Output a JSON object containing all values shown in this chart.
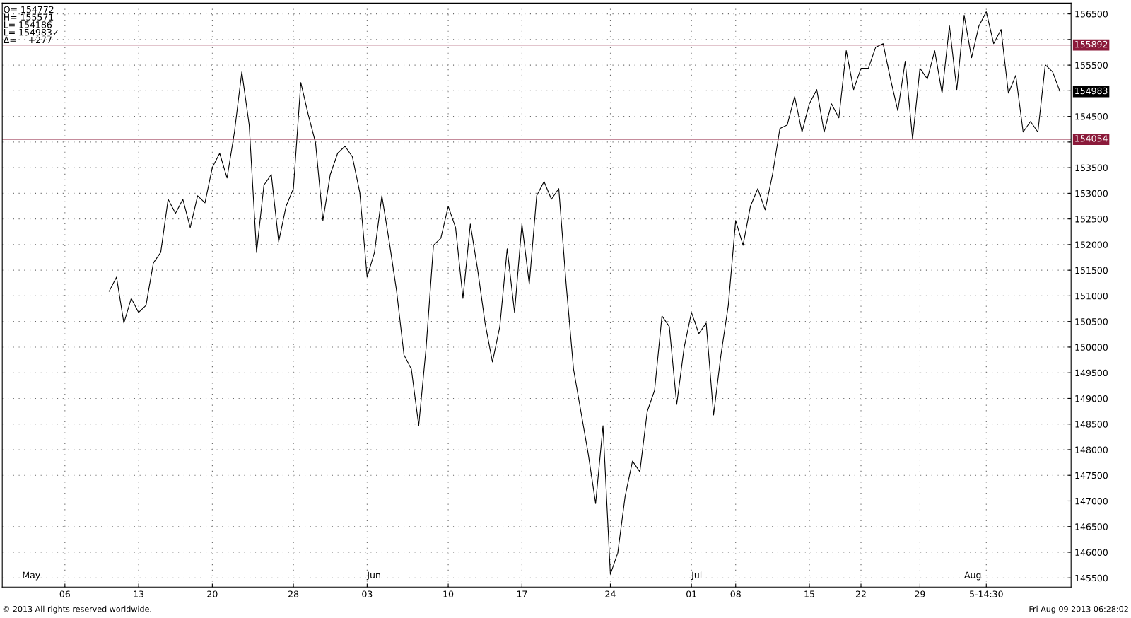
{
  "chart_data": {
    "type": "line",
    "categories": [
      null,
      null,
      null,
      null,
      null,
      null,
      null,
      null,
      "06",
      null,
      null,
      null,
      null,
      null,
      null,
      null,
      null,
      null,
      "13",
      null,
      null,
      null,
      null,
      null,
      null,
      null,
      null,
      null,
      "20",
      null,
      null,
      null,
      null,
      null,
      null,
      null,
      null,
      null,
      null,
      "28",
      null,
      null,
      null,
      null,
      null,
      null,
      null,
      null,
      null,
      "03",
      null,
      null,
      null,
      null,
      null,
      null,
      null,
      null,
      null,
      null,
      "10",
      null,
      null,
      null,
      null,
      null,
      null,
      null,
      null,
      null,
      "17",
      null,
      null,
      null,
      null,
      null,
      null,
      null,
      null,
      null,
      null,
      null,
      "24",
      null,
      null,
      null,
      null,
      null,
      null,
      null,
      null,
      null,
      null,
      "01",
      null,
      null,
      null,
      null,
      null,
      "08",
      null,
      null,
      null,
      null,
      null,
      null,
      null,
      null,
      null,
      "15",
      null,
      null,
      null,
      null,
      null,
      null,
      "22",
      null,
      null,
      null,
      null,
      null,
      null,
      null,
      "29",
      null,
      null,
      null,
      null,
      null,
      null,
      null,
      null,
      "5-14:30",
      null,
      null,
      null,
      null,
      null,
      null,
      null,
      null,
      null,
      null,
      null
    ],
    "series": [
      {
        "color": "#000000",
        "values": [
          null,
          null,
          null,
          null,
          null,
          null,
          null,
          null,
          null,
          null,
          null,
          null,
          null,
          null,
          151090,
          151366,
          150469,
          150952,
          150676,
          150814,
          151642,
          151849,
          152884,
          152608,
          152884,
          152332,
          152953,
          152815,
          153505,
          153781,
          153298,
          154195,
          155368,
          154333,
          151849,
          153160,
          153367,
          152056,
          152746,
          153091,
          155161,
          154540,
          153988,
          152470,
          153367,
          153781,
          153919,
          153712,
          153022,
          151366,
          151849,
          152953,
          152056,
          151090,
          149848,
          149572,
          148468,
          149986,
          151987,
          152125,
          152746,
          152332,
          150952,
          152401,
          151504,
          150469,
          149710,
          150400,
          151918,
          150676,
          152401,
          151228,
          152953,
          153229,
          152884,
          153091,
          151228,
          149572,
          148744,
          147916,
          146950,
          148468,
          145570,
          145984,
          147088,
          147778,
          147571,
          148744,
          149158,
          150607,
          150400,
          148882,
          149986,
          150676,
          150262,
          150469,
          148675,
          149848,
          150814,
          152470,
          151987,
          152746,
          153091,
          152677,
          153367,
          154264,
          154333,
          154885,
          154195,
          154747,
          155023,
          154195,
          154747,
          154471,
          155782,
          155023,
          155437,
          155437,
          155851,
          155920,
          155230,
          154609,
          155575,
          154057,
          155437,
          155230,
          155782,
          154954,
          156265,
          155023,
          156472,
          155644,
          156265,
          156541,
          155920,
          156196,
          154954,
          155299,
          154195,
          154402,
          154195,
          155506,
          155368,
          154983,
          null
        ]
      }
    ],
    "ylim": [
      145320,
      156710
    ],
    "yticks": [
      145500,
      146000,
      146500,
      147000,
      147500,
      148000,
      148500,
      149000,
      149500,
      150000,
      150500,
      151000,
      151500,
      152000,
      152500,
      153000,
      153500,
      {
        "value": 154000,
        "label": null
      },
      154500,
      {
        "value": 155000,
        "label": null
      },
      155500,
      {
        "value": 156000,
        "label": null
      },
      156500
    ],
    "ref_lines": [
      {
        "axis": "y",
        "value": 155892,
        "label": "155892",
        "color": "#8b1a3a"
      },
      {
        "axis": "y",
        "value": 154054,
        "label": "154054",
        "color": "#8b1a3a"
      }
    ],
    "grid": true,
    "marker": "none",
    "line_style": "solid",
    "annotations": [
      "O= 154772",
      "H= 155571",
      "L= 154186",
      "L= 154983✓",
      "Δ=    +277",
      "154983",
      "May",
      "Jun",
      "Jul",
      "Aug",
      "© 2013 All rights reserved worldwide.",
      "Fri Aug 09 2013 06:28:02"
    ]
  }
}
